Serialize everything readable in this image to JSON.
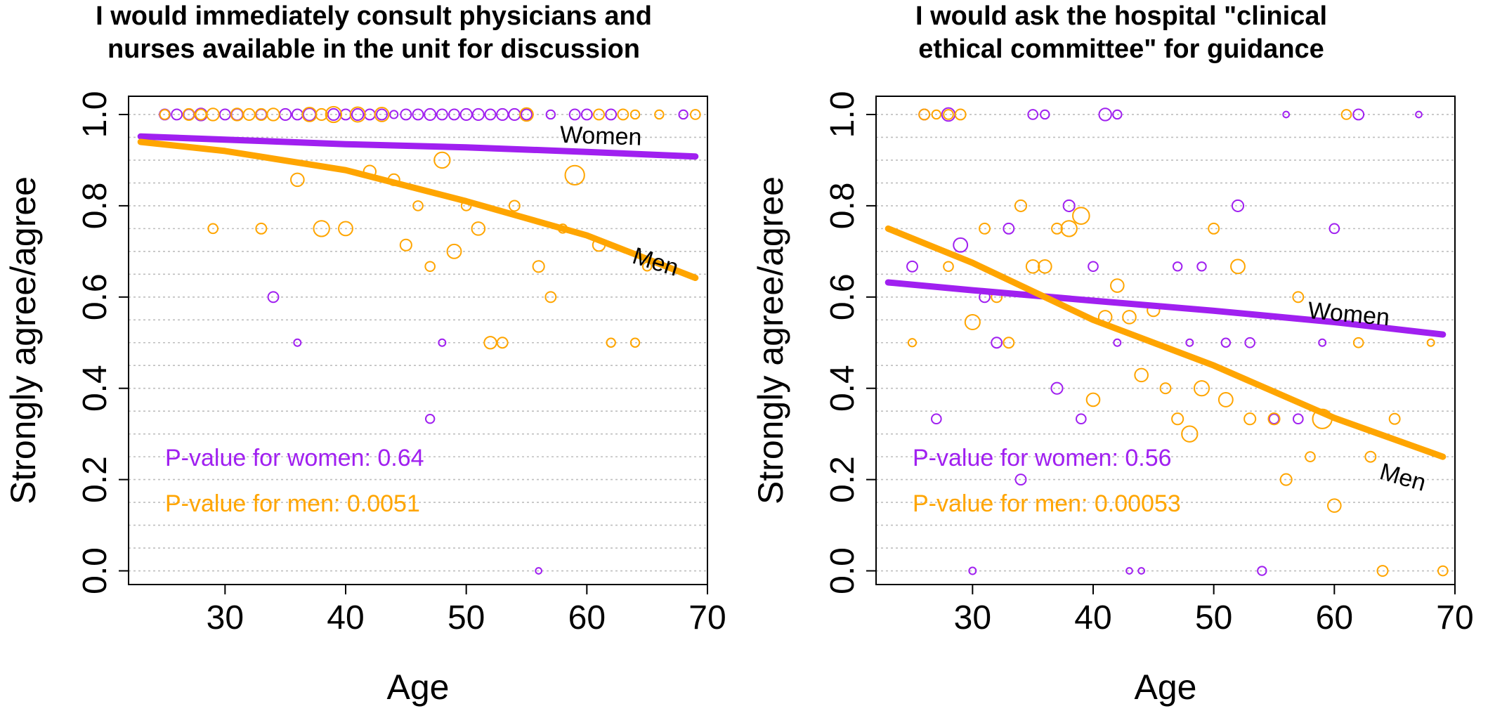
{
  "colors": {
    "women": "#A020F0",
    "men": "#FFA500",
    "axis": "#000000",
    "grid": "#BEBEBE",
    "text": "#000000"
  },
  "chart_data": [
    {
      "type": "scatter",
      "title": [
        "I would immediately consult physicians and",
        "nurses available in the unit for discussion"
      ],
      "xlabel": "Age",
      "ylabel": "Strongly agree/agree",
      "xlim": [
        22,
        70
      ],
      "ylim": [
        -0.03,
        1.04
      ],
      "xticks": [
        "30",
        "40",
        "50",
        "60",
        "70"
      ],
      "yticks": [
        "0.0",
        "0.2",
        "0.4",
        "0.6",
        "0.8",
        "1.0"
      ],
      "grid": "horizontal dotted",
      "annotations": [
        "P-value for women: 0.64",
        "P-value for men: 0.0051"
      ],
      "curve_labels": [
        "Women",
        "Men"
      ],
      "series": [
        {
          "name": "Women",
          "points": [
            [
              25,
              1,
              1.2
            ],
            [
              26,
              1,
              1.2
            ],
            [
              27,
              1,
              1.2
            ],
            [
              28,
              1,
              1.4
            ],
            [
              30,
              1,
              1.2
            ],
            [
              31,
              1,
              1.3
            ],
            [
              33,
              1,
              1.2
            ],
            [
              35,
              1,
              1.3
            ],
            [
              36,
              1,
              1.2
            ],
            [
              37,
              1,
              1.4
            ],
            [
              39,
              1,
              1.3
            ],
            [
              40,
              1,
              1.2
            ],
            [
              41,
              1,
              1.3
            ],
            [
              42,
              1,
              1.2
            ],
            [
              43,
              1,
              1.2
            ],
            [
              44,
              1,
              0.9
            ],
            [
              45,
              1,
              1.2
            ],
            [
              46,
              1,
              1.2
            ],
            [
              47,
              1,
              1.3
            ],
            [
              48,
              1,
              1.2
            ],
            [
              49,
              1,
              1.2
            ],
            [
              50,
              1,
              1.3
            ],
            [
              51,
              1,
              1.3
            ],
            [
              52,
              1,
              1.2
            ],
            [
              53,
              1,
              1.3
            ],
            [
              54,
              1,
              1.3
            ],
            [
              55,
              1,
              1.2
            ],
            [
              57,
              1,
              1.0
            ],
            [
              59,
              1,
              1.2
            ],
            [
              60,
              1,
              1.2
            ],
            [
              62,
              1,
              1.2
            ],
            [
              68,
              1,
              1.0
            ],
            [
              34,
              0.6,
              1.2
            ],
            [
              36,
              0.5,
              0.8
            ],
            [
              48,
              0.5,
              0.8
            ],
            [
              47,
              0.333,
              1.0
            ],
            [
              56,
              0,
              0.7
            ]
          ],
          "fit": [
            [
              23,
              0.952
            ],
            [
              30,
              0.945
            ],
            [
              40,
              0.935
            ],
            [
              50,
              0.928
            ],
            [
              60,
              0.918
            ],
            [
              69,
              0.908
            ]
          ]
        },
        {
          "name": "Men",
          "points": [
            [
              25,
              1,
              1.1
            ],
            [
              27,
              1,
              1.3
            ],
            [
              28,
              1,
              1.2
            ],
            [
              29,
              1,
              1.4
            ],
            [
              31,
              1,
              1.4
            ],
            [
              32,
              1,
              1.3
            ],
            [
              33,
              1,
              1.3
            ],
            [
              34,
              1,
              1.4
            ],
            [
              37,
              1,
              1.6
            ],
            [
              38,
              1,
              1.3
            ],
            [
              39,
              1,
              1.8
            ],
            [
              41,
              1,
              1.7
            ],
            [
              43,
              1,
              1.6
            ],
            [
              55,
              1,
              1.5
            ],
            [
              61,
              1,
              1.2
            ],
            [
              63,
              1,
              1.2
            ],
            [
              64,
              1,
              1.0
            ],
            [
              66,
              1,
              1.0
            ],
            [
              69,
              1,
              1.1
            ],
            [
              36,
              0.857,
              1.5
            ],
            [
              42,
              0.875,
              1.4
            ],
            [
              44,
              0.857,
              1.3
            ],
            [
              48,
              0.9,
              1.8
            ],
            [
              59,
              0.867,
              2.2
            ],
            [
              29,
              0.75,
              1.1
            ],
            [
              33,
              0.75,
              1.2
            ],
            [
              38,
              0.75,
              1.8
            ],
            [
              40,
              0.75,
              1.6
            ],
            [
              46,
              0.8,
              1.1
            ],
            [
              50,
              0.8,
              1.1
            ],
            [
              54,
              0.8,
              1.2
            ],
            [
              45,
              0.714,
              1.3
            ],
            [
              49,
              0.7,
              1.6
            ],
            [
              51,
              0.75,
              1.5
            ],
            [
              47,
              0.667,
              1.1
            ],
            [
              56,
              0.667,
              1.3
            ],
            [
              58,
              0.75,
              1.0
            ],
            [
              61,
              0.714,
              1.4
            ],
            [
              65,
              0.667,
              1.0
            ],
            [
              57,
              0.6,
              1.2
            ],
            [
              52,
              0.5,
              1.4
            ],
            [
              53,
              0.5,
              1.2
            ],
            [
              62,
              0.5,
              1.0
            ],
            [
              64,
              0.5,
              1.0
            ]
          ],
          "fit": [
            [
              23,
              0.94
            ],
            [
              30,
              0.92
            ],
            [
              40,
              0.878
            ],
            [
              50,
              0.81
            ],
            [
              60,
              0.735
            ],
            [
              69,
              0.642
            ]
          ]
        }
      ]
    },
    {
      "type": "scatter",
      "title": [
        "I would ask the hospital \"clinical",
        "ethical committee\" for guidance"
      ],
      "xlabel": "Age",
      "ylabel": "Strongly agree/agree",
      "xlim": [
        22,
        70
      ],
      "ylim": [
        -0.03,
        1.04
      ],
      "xticks": [
        "30",
        "40",
        "50",
        "60",
        "70"
      ],
      "yticks": [
        "0.0",
        "0.2",
        "0.4",
        "0.6",
        "0.8",
        "1.0"
      ],
      "grid": "horizontal dotted",
      "annotations": [
        "P-value for women: 0.56",
        "P-value for men: 0.00053"
      ],
      "curve_labels": [
        "Women",
        "Men"
      ],
      "series": [
        {
          "name": "Women",
          "points": [
            [
              26,
              1,
              1.2
            ],
            [
              28,
              1,
              1.5
            ],
            [
              35,
              1,
              1.1
            ],
            [
              36,
              1,
              1.0
            ],
            [
              41,
              1,
              1.4
            ],
            [
              42,
              1,
              1.0
            ],
            [
              56,
              1,
              0.7
            ],
            [
              62,
              1,
              1.2
            ],
            [
              67,
              1,
              0.7
            ],
            [
              25,
              0.667,
              1.2
            ],
            [
              29,
              0.714,
              1.6
            ],
            [
              33,
              0.75,
              1.2
            ],
            [
              38,
              0.8,
              1.3
            ],
            [
              40,
              0.667,
              1.1
            ],
            [
              47,
              0.667,
              1.0
            ],
            [
              49,
              0.667,
              1.0
            ],
            [
              52,
              0.8,
              1.3
            ],
            [
              60,
              0.75,
              1.1
            ],
            [
              31,
              0.6,
              1.2
            ],
            [
              32,
              0.5,
              1.2
            ],
            [
              37,
              0.4,
              1.3
            ],
            [
              39,
              0.333,
              1.1
            ],
            [
              42,
              0.5,
              0.8
            ],
            [
              48,
              0.5,
              0.8
            ],
            [
              51,
              0.5,
              1.0
            ],
            [
              53,
              0.5,
              1.1
            ],
            [
              55,
              0.333,
              1.1
            ],
            [
              57,
              0.333,
              1.1
            ],
            [
              59,
              0.5,
              0.8
            ],
            [
              27,
              0.333,
              1.1
            ],
            [
              34,
              0.2,
              1.2
            ],
            [
              30,
              0,
              0.8
            ],
            [
              43,
              0,
              0.7
            ],
            [
              44,
              0,
              0.7
            ],
            [
              54,
              0,
              1.0
            ]
          ],
          "fit": [
            [
              23,
              0.632
            ],
            [
              30,
              0.615
            ],
            [
              40,
              0.592
            ],
            [
              50,
              0.57
            ],
            [
              60,
              0.545
            ],
            [
              69,
              0.518
            ]
          ]
        },
        {
          "name": "Men",
          "points": [
            [
              26,
              1,
              1.2
            ],
            [
              27,
              1,
              1.0
            ],
            [
              28,
              1,
              1.1
            ],
            [
              29,
              1,
              1.2
            ],
            [
              61,
              1,
              1.1
            ],
            [
              25,
              0.5,
              0.9
            ],
            [
              28,
              0.667,
              1.1
            ],
            [
              31,
              0.75,
              1.2
            ],
            [
              30,
              0.545,
              1.7
            ],
            [
              32,
              0.6,
              1.2
            ],
            [
              33,
              0.5,
              1.2
            ],
            [
              34,
              0.8,
              1.3
            ],
            [
              35,
              0.667,
              1.5
            ],
            [
              36,
              0.667,
              1.5
            ],
            [
              37,
              0.75,
              1.2
            ],
            [
              38,
              0.75,
              1.8
            ],
            [
              39,
              0.778,
              1.9
            ],
            [
              41,
              0.556,
              1.5
            ],
            [
              42,
              0.625,
              1.5
            ],
            [
              43,
              0.556,
              1.5
            ],
            [
              44,
              0.429,
              1.5
            ],
            [
              45,
              0.571,
              1.4
            ],
            [
              40,
              0.375,
              1.5
            ],
            [
              46,
              0.4,
              1.2
            ],
            [
              47,
              0.333,
              1.3
            ],
            [
              48,
              0.3,
              1.8
            ],
            [
              49,
              0.4,
              1.7
            ],
            [
              50,
              0.75,
              1.2
            ],
            [
              51,
              0.375,
              1.6
            ],
            [
              52,
              0.667,
              1.6
            ],
            [
              53,
              0.333,
              1.3
            ],
            [
              55,
              0.333,
              1.3
            ],
            [
              56,
              0.2,
              1.3
            ],
            [
              57,
              0.6,
              1.2
            ],
            [
              58,
              0.25,
              1.1
            ],
            [
              59,
              0.333,
              2.2
            ],
            [
              60,
              0.143,
              1.5
            ],
            [
              62,
              0.5,
              1.1
            ],
            [
              63,
              0.25,
              1.2
            ],
            [
              64,
              0,
              1.2
            ],
            [
              65,
              0.333,
              1.2
            ],
            [
              68,
              0.5,
              0.8
            ],
            [
              69,
              0,
              1.1
            ]
          ],
          "fit": [
            [
              23,
              0.75
            ],
            [
              30,
              0.675
            ],
            [
              40,
              0.55
            ],
            [
              50,
              0.45
            ],
            [
              60,
              0.335
            ],
            [
              69,
              0.25
            ]
          ]
        }
      ]
    }
  ]
}
